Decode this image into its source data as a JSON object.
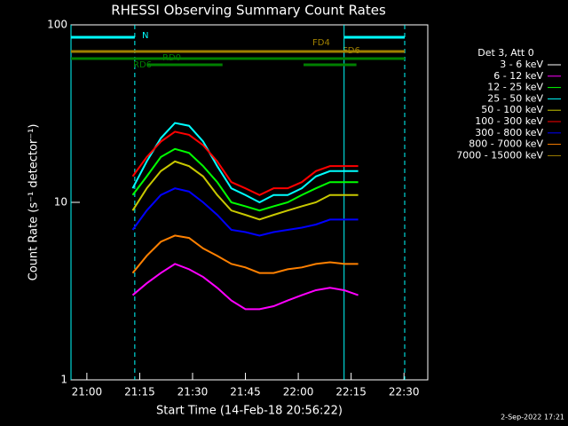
{
  "chart_data": {
    "type": "line",
    "title": "RHESSI Observing Summary Count Rates",
    "xlabel": "Start Time (14-Feb-18 20:56:22)",
    "ylabel": "Count Rate (s⁻¹ detector⁻¹)",
    "legend_title": "Det 3, Att 0",
    "legend": "right",
    "footer": "2-Sep-2022 17:21",
    "log_y": true,
    "xlim": [
      1255.5,
      1356.75
    ],
    "xticks": [
      {
        "value": 1260,
        "label": "21:00"
      },
      {
        "value": 1275,
        "label": "21:15"
      },
      {
        "value": 1290,
        "label": "21:30"
      },
      {
        "value": 1305,
        "label": "21:45"
      },
      {
        "value": 1320,
        "label": "22:00"
      },
      {
        "value": 1335,
        "label": "22:15"
      },
      {
        "value": 1350,
        "label": "22:30"
      }
    ],
    "ylim": [
      1,
      100
    ],
    "yticks": [
      1,
      10,
      100
    ],
    "x": [
      1273,
      1277,
      1281,
      1285,
      1289,
      1293,
      1297,
      1301,
      1305,
      1309,
      1313,
      1317,
      1321,
      1325,
      1329,
      1333,
      1337
    ],
    "series": [
      {
        "name": "3 - 6 keV",
        "color": "#ffffff",
        "values": [
          null,
          null,
          null,
          null,
          null,
          null,
          null,
          null,
          null,
          null,
          null,
          null,
          null,
          null,
          null,
          null,
          null
        ]
      },
      {
        "name": "6 - 12 keV",
        "color": "#ff00ff",
        "values": [
          3,
          3.5,
          4,
          4.5,
          4.2,
          3.8,
          3.3,
          2.8,
          2.5,
          2.5,
          2.6,
          2.8,
          3,
          3.2,
          3.3,
          3.2,
          3
        ]
      },
      {
        "name": "12 - 25 keV",
        "color": "#00ff00",
        "values": [
          11,
          14,
          18,
          20,
          19,
          16,
          13,
          10,
          9.5,
          9,
          9.5,
          10,
          11,
          12,
          13,
          13,
          13
        ]
      },
      {
        "name": "25 - 50 keV",
        "color": "#00ffff",
        "values": [
          12,
          17,
          23,
          28,
          27,
          22,
          16,
          12,
          11,
          10,
          11,
          11,
          12,
          14,
          15,
          15,
          15
        ]
      },
      {
        "name": "50 - 100 keV",
        "color": "#c8c800",
        "values": [
          9,
          12,
          15,
          17,
          16,
          14,
          11,
          9,
          8.5,
          8,
          8.5,
          9,
          9.5,
          10,
          11,
          11,
          11
        ]
      },
      {
        "name": "100 - 300 keV",
        "color": "#ff0000",
        "values": [
          14,
          18,
          22,
          25,
          24,
          21,
          17,
          13,
          12,
          11,
          12,
          12,
          13,
          15,
          16,
          16,
          16
        ]
      },
      {
        "name": "300 - 800 keV",
        "color": "#0000ff",
        "values": [
          7,
          9,
          11,
          12,
          11.5,
          10,
          8.5,
          7,
          6.8,
          6.5,
          6.8,
          7,
          7.2,
          7.5,
          8,
          8,
          8
        ]
      },
      {
        "name": "800 - 7000 keV",
        "color": "#ff8000",
        "values": [
          4,
          5,
          6,
          6.5,
          6.3,
          5.5,
          5,
          4.5,
          4.3,
          4,
          4,
          4.2,
          4.3,
          4.5,
          4.6,
          4.5,
          4.5
        ]
      },
      {
        "name": "7000 - 15000 keV",
        "color": "#a08000",
        "values": [
          null,
          null,
          null,
          null,
          null,
          null,
          null,
          null,
          null,
          null,
          null,
          null,
          null,
          null,
          null,
          null,
          null
        ]
      }
    ],
    "state_bars": [
      {
        "label": "N",
        "color": "#00ffff",
        "segments": [
          [
            1255.5,
            1273.6
          ],
          [
            1333,
            1350.2
          ]
        ]
      },
      {
        "label": "FD4",
        "color": "#a08000",
        "segments": [
          [
            1255.5,
            1350.2
          ]
        ]
      },
      {
        "label": "RD0",
        "color": "#008000",
        "segments": [
          [
            1255.5,
            1350.2
          ]
        ]
      },
      {
        "label": "RD6",
        "color": "#008000",
        "segments": [
          [
            1277,
            1298.5
          ],
          [
            1321.5,
            1336.5
          ]
        ]
      }
    ],
    "annotations": [
      "FD6"
    ],
    "vertical_lines": [
      {
        "x": 1255.5,
        "style": "solid"
      },
      {
        "x": 1273.6,
        "style": "dashed"
      },
      {
        "x": 1333,
        "style": "solid"
      },
      {
        "x": 1350.2,
        "style": "dashed"
      }
    ]
  }
}
